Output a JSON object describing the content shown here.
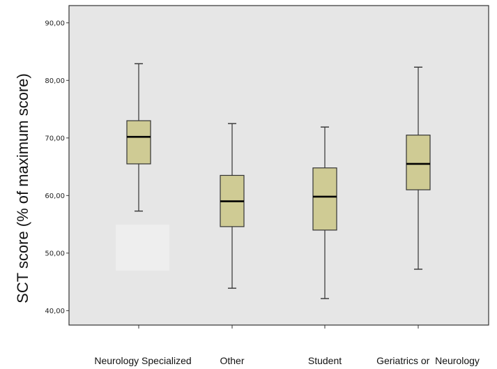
{
  "chart_data": {
    "type": "boxplot",
    "title": "",
    "xlabel": "",
    "ylabel": "SCT score (% of maximum score)",
    "ylim": [
      37.5,
      93.0
    ],
    "yticks": [
      40,
      50,
      60,
      70,
      80,
      90
    ],
    "ytick_labels": [
      "40,00",
      "50,00",
      "60,00",
      "70,00",
      "80,00",
      "90,00"
    ],
    "grid": false,
    "categories": [
      "Neurology Specialized",
      "Other",
      "Student",
      "Geriatrics or  Neurology"
    ],
    "series": [
      {
        "category": "Neurology Specialized",
        "min": 57.3,
        "q1": 65.5,
        "median": 70.2,
        "q3": 73.0,
        "max": 82.9
      },
      {
        "category": "Other",
        "min": 43.9,
        "q1": 54.6,
        "median": 59.0,
        "q3": 63.5,
        "max": 72.5
      },
      {
        "category": "Student",
        "min": 42.1,
        "q1": 54.0,
        "median": 59.8,
        "q3": 64.8,
        "max": 71.9
      },
      {
        "category": "Geriatrics or  Neurology",
        "min": 47.2,
        "q1": 61.0,
        "median": 65.5,
        "q3": 70.5,
        "max": 82.3
      }
    ],
    "colors": {
      "plot_background": "#e6e6e6",
      "box_fill": "#cfcb94",
      "box_stroke": "#333333",
      "median": "#000000",
      "axis": "#333333"
    }
  }
}
